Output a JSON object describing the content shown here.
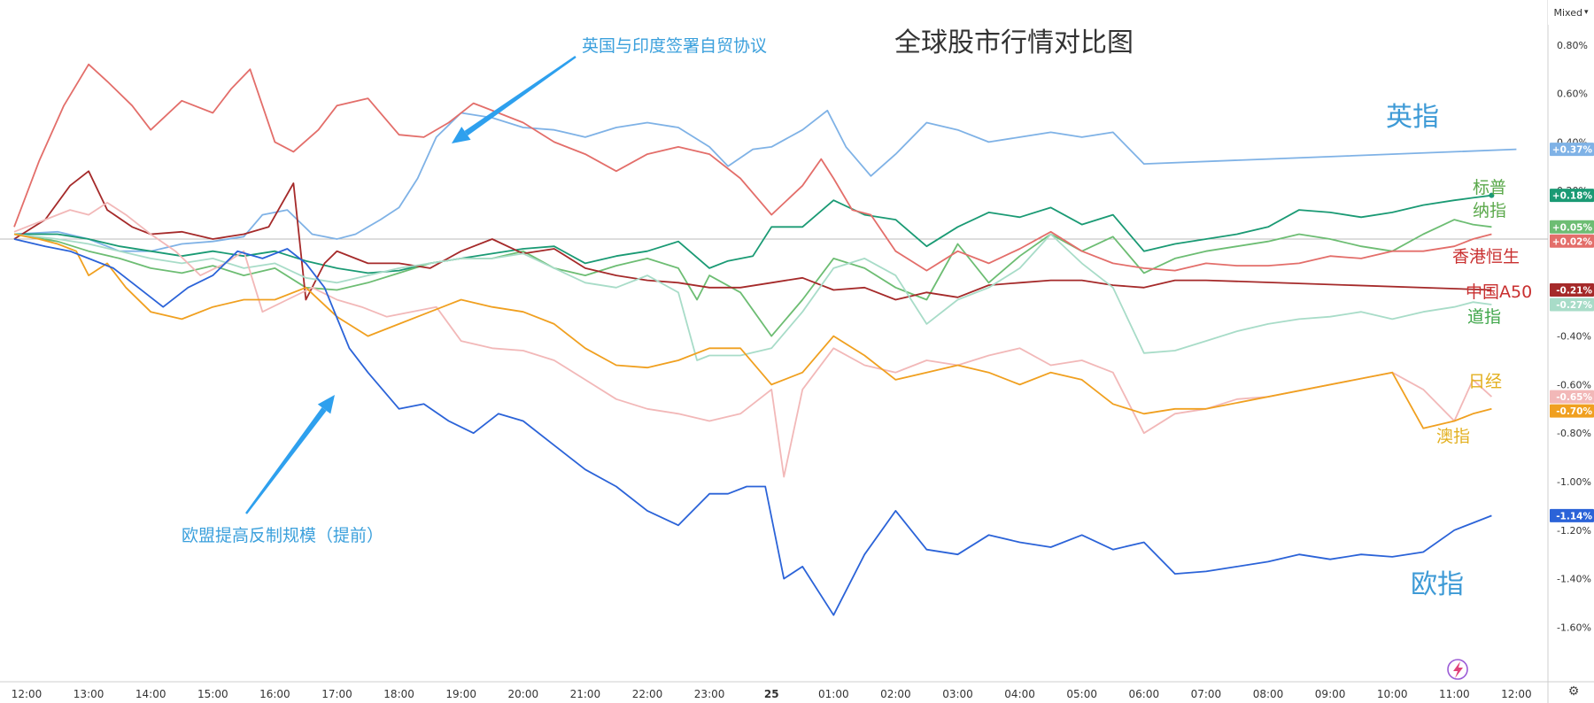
{
  "chart_data": {
    "type": "line",
    "title": "全球股市行情对比图",
    "y_ticks": [
      "0.80%",
      "0.60%",
      "0.40%",
      "0.20%",
      "-0.20%",
      "-0.40%",
      "-0.60%",
      "-0.80%",
      "-1.00%",
      "-1.20%",
      "-1.40%",
      "-1.60%"
    ],
    "ylim": [
      -1.72,
      0.9
    ],
    "x_ticks": [
      "12:00",
      "13:00",
      "14:00",
      "15:00",
      "16:00",
      "17:00",
      "18:00",
      "19:00",
      "20:00",
      "21:00",
      "22:00",
      "23:00",
      "25",
      "01:00",
      "02:00",
      "03:00",
      "04:00",
      "05:00",
      "06:00",
      "07:00",
      "08:00",
      "09:00",
      "10:00",
      "11:00",
      "12:00"
    ],
    "x_unit": "hours from 12:00 on 24th",
    "xlim": [
      -0.2,
      24.6
    ],
    "scale_mode": "Mixed",
    "grid": false,
    "zero_line": true,
    "series": [
      {
        "name": "英指",
        "color": "#7fb2e6",
        "badge": "+0.37%",
        "x": [
          -0.2,
          0.5,
          1.0,
          1.5,
          2.0,
          2.5,
          3.0,
          3.5,
          3.8,
          4.2,
          4.6,
          5.0,
          5.3,
          5.7,
          6.0,
          6.3,
          6.6,
          7.0,
          7.5,
          8.0,
          8.5,
          9.0,
          9.5,
          10.0,
          10.5,
          11.0,
          11.3,
          11.7,
          12.0,
          12.5,
          12.9,
          13.2,
          13.6,
          14.0,
          14.5,
          15.0,
          15.5,
          16.0,
          16.5,
          17.0,
          17.5,
          18.0,
          23.0,
          24.0
        ],
        "y": [
          0.02,
          0.03,
          0.0,
          -0.05,
          -0.05,
          -0.02,
          -0.01,
          0.01,
          0.1,
          0.12,
          0.02,
          0.0,
          0.02,
          0.08,
          0.13,
          0.25,
          0.42,
          0.52,
          0.5,
          0.46,
          0.45,
          0.42,
          0.46,
          0.48,
          0.46,
          0.38,
          0.3,
          0.37,
          0.38,
          0.45,
          0.53,
          0.38,
          0.26,
          0.35,
          0.48,
          0.45,
          0.4,
          0.42,
          0.44,
          0.42,
          0.44,
          0.31,
          0.36,
          0.37
        ]
      },
      {
        "name": "标普",
        "color": "#1a9a74",
        "badge": "+0.18%",
        "x": [
          -0.2,
          0.5,
          1.0,
          1.5,
          2.0,
          2.5,
          3.0,
          3.5,
          4.0,
          4.5,
          5.0,
          5.5,
          6.0,
          6.5,
          7.0,
          7.5,
          8.0,
          8.5,
          9.0,
          9.5,
          10.0,
          10.5,
          11.0,
          11.3,
          11.7,
          12.0,
          12.5,
          13.0,
          13.5,
          14.0,
          14.5,
          15.0,
          15.5,
          16.0,
          16.5,
          17.0,
          17.5,
          18.0,
          18.5,
          19.0,
          19.5,
          20.0,
          20.5,
          21.0,
          21.5,
          22.0,
          22.5,
          23.0,
          23.3,
          23.6
        ],
        "y": [
          0.02,
          0.02,
          0.0,
          -0.03,
          -0.05,
          -0.07,
          -0.05,
          -0.07,
          -0.05,
          -0.09,
          -0.12,
          -0.14,
          -0.13,
          -0.1,
          -0.08,
          -0.06,
          -0.04,
          -0.03,
          -0.1,
          -0.07,
          -0.05,
          -0.01,
          -0.12,
          -0.09,
          -0.07,
          0.05,
          0.05,
          0.16,
          0.1,
          0.08,
          -0.03,
          0.05,
          0.11,
          0.09,
          0.13,
          0.06,
          0.1,
          -0.05,
          -0.02,
          0.0,
          0.02,
          0.05,
          0.12,
          0.11,
          0.09,
          0.11,
          0.14,
          0.16,
          0.17,
          0.18
        ]
      },
      {
        "name": "纳指",
        "color": "#6dbd73",
        "badge": "+0.05%",
        "x": [
          -0.2,
          0.5,
          1.0,
          1.5,
          2.0,
          2.5,
          3.0,
          3.5,
          4.0,
          4.5,
          5.0,
          5.5,
          6.0,
          6.5,
          7.0,
          7.5,
          8.0,
          8.5,
          9.0,
          9.5,
          10.0,
          10.5,
          10.8,
          11.0,
          11.5,
          12.0,
          12.5,
          13.0,
          13.5,
          14.0,
          14.5,
          15.0,
          15.5,
          16.0,
          16.5,
          17.0,
          17.5,
          18.0,
          18.5,
          19.0,
          19.5,
          20.0,
          20.5,
          21.0,
          21.5,
          22.0,
          22.5,
          23.0,
          23.3,
          23.6
        ],
        "y": [
          0.02,
          -0.01,
          -0.05,
          -0.08,
          -0.12,
          -0.14,
          -0.11,
          -0.15,
          -0.12,
          -0.2,
          -0.21,
          -0.18,
          -0.14,
          -0.1,
          -0.08,
          -0.08,
          -0.05,
          -0.12,
          -0.15,
          -0.11,
          -0.08,
          -0.12,
          -0.25,
          -0.15,
          -0.22,
          -0.4,
          -0.25,
          -0.08,
          -0.12,
          -0.2,
          -0.25,
          -0.02,
          -0.18,
          -0.07,
          0.02,
          -0.05,
          0.01,
          -0.14,
          -0.08,
          -0.05,
          -0.03,
          -0.01,
          0.02,
          0.0,
          -0.03,
          -0.05,
          0.02,
          0.08,
          0.06,
          0.05
        ]
      },
      {
        "name": "香港恒生",
        "color": "#e36e6a",
        "badge": "+0.02%",
        "x": [
          -0.2,
          0.2,
          0.6,
          1.0,
          1.3,
          1.7,
          2.0,
          2.5,
          3.0,
          3.3,
          3.6,
          4.0,
          4.3,
          4.7,
          5.0,
          5.5,
          6.0,
          6.4,
          6.8,
          7.2,
          7.6,
          8.0,
          8.5,
          9.0,
          9.5,
          10.0,
          10.5,
          11.0,
          11.5,
          12.0,
          12.5,
          12.8,
          13.0,
          13.3,
          13.6,
          14.0,
          14.5,
          15.0,
          15.5,
          16.0,
          16.5,
          17.0,
          17.5,
          18.0,
          18.5,
          19.0,
          19.5,
          20.0,
          20.5,
          21.0,
          21.5,
          22.0,
          22.5,
          23.0,
          23.3,
          23.6
        ],
        "y": [
          0.05,
          0.32,
          0.55,
          0.72,
          0.65,
          0.55,
          0.45,
          0.57,
          0.52,
          0.62,
          0.7,
          0.4,
          0.36,
          0.45,
          0.55,
          0.58,
          0.43,
          0.42,
          0.48,
          0.56,
          0.52,
          0.48,
          0.4,
          0.35,
          0.28,
          0.35,
          0.38,
          0.35,
          0.25,
          0.1,
          0.22,
          0.33,
          0.25,
          0.12,
          0.1,
          -0.05,
          -0.13,
          -0.05,
          -0.1,
          -0.04,
          0.03,
          -0.05,
          -0.1,
          -0.12,
          -0.13,
          -0.1,
          -0.11,
          -0.11,
          -0.1,
          -0.07,
          -0.08,
          -0.05,
          -0.05,
          -0.03,
          0.0,
          0.02
        ]
      },
      {
        "name": "中国A50",
        "color": "#a52a2a",
        "badge": "-0.21%",
        "x": [
          -0.2,
          0.3,
          0.7,
          1.0,
          1.3,
          1.7,
          2.0,
          2.5,
          3.0,
          3.5,
          3.9,
          4.3,
          4.5,
          4.8,
          5.0,
          5.5,
          6.0,
          6.5,
          7.0,
          7.5,
          8.0,
          8.5,
          9.0,
          9.5,
          10.0,
          10.5,
          11.0,
          11.5,
          12.0,
          12.5,
          13.0,
          13.5,
          14.0,
          14.5,
          15.0,
          15.5,
          16.0,
          16.5,
          17.0,
          17.5,
          18.0,
          18.5,
          19.0,
          23.6
        ],
        "y": [
          0.0,
          0.08,
          0.22,
          0.28,
          0.12,
          0.05,
          0.02,
          0.03,
          0.0,
          0.02,
          0.05,
          0.23,
          -0.25,
          -0.1,
          -0.05,
          -0.1,
          -0.1,
          -0.12,
          -0.05,
          0.0,
          -0.06,
          -0.04,
          -0.12,
          -0.15,
          -0.17,
          -0.18,
          -0.2,
          -0.2,
          -0.18,
          -0.16,
          -0.21,
          -0.2,
          -0.25,
          -0.22,
          -0.24,
          -0.19,
          -0.18,
          -0.17,
          -0.17,
          -0.19,
          -0.2,
          -0.17,
          -0.17,
          -0.21
        ]
      },
      {
        "name": "道指",
        "color": "#a8dcc8",
        "badge": "-0.27%",
        "x": [
          -0.2,
          0.5,
          1.0,
          1.5,
          2.0,
          2.5,
          3.0,
          3.5,
          4.0,
          4.5,
          5.0,
          5.5,
          6.0,
          6.5,
          7.0,
          7.5,
          8.0,
          8.5,
          9.0,
          9.5,
          10.0,
          10.5,
          10.8,
          11.0,
          11.5,
          12.0,
          12.5,
          13.0,
          13.5,
          14.0,
          14.5,
          15.0,
          15.5,
          16.0,
          16.5,
          17.0,
          17.5,
          18.0,
          18.5,
          19.0,
          19.5,
          20.0,
          20.5,
          21.0,
          21.5,
          22.0,
          22.5,
          23.0,
          23.3,
          23.6
        ],
        "y": [
          0.02,
          0.0,
          -0.02,
          -0.05,
          -0.08,
          -0.1,
          -0.08,
          -0.12,
          -0.1,
          -0.16,
          -0.18,
          -0.15,
          -0.12,
          -0.1,
          -0.08,
          -0.08,
          -0.06,
          -0.12,
          -0.18,
          -0.2,
          -0.15,
          -0.22,
          -0.5,
          -0.48,
          -0.48,
          -0.45,
          -0.3,
          -0.12,
          -0.08,
          -0.15,
          -0.35,
          -0.25,
          -0.2,
          -0.12,
          0.02,
          -0.1,
          -0.2,
          -0.47,
          -0.46,
          -0.42,
          -0.38,
          -0.35,
          -0.33,
          -0.32,
          -0.3,
          -0.33,
          -0.3,
          -0.28,
          -0.26,
          -0.27
        ]
      },
      {
        "name": "日经",
        "color": "#f2b8b8",
        "badge": "-0.65%",
        "x": [
          -0.2,
          0.3,
          0.7,
          1.0,
          1.3,
          1.6,
          2.0,
          2.4,
          2.8,
          3.2,
          3.5,
          3.8,
          4.2,
          4.6,
          5.0,
          5.4,
          5.8,
          6.2,
          6.6,
          7.0,
          7.5,
          8.0,
          8.5,
          9.0,
          9.5,
          10.0,
          10.5,
          11.0,
          11.5,
          12.0,
          12.2,
          12.5,
          13.0,
          13.5,
          14.0,
          14.5,
          15.0,
          15.5,
          16.0,
          16.5,
          17.0,
          17.5,
          18.0,
          18.5,
          19.0,
          19.5,
          20.0,
          21.0,
          22.0,
          22.5,
          23.0,
          23.3,
          23.6
        ],
        "y": [
          0.03,
          0.08,
          0.12,
          0.1,
          0.15,
          0.1,
          0.02,
          -0.05,
          -0.15,
          -0.1,
          -0.05,
          -0.3,
          -0.25,
          -0.2,
          -0.25,
          -0.28,
          -0.32,
          -0.3,
          -0.28,
          -0.42,
          -0.45,
          -0.46,
          -0.5,
          -0.58,
          -0.66,
          -0.7,
          -0.72,
          -0.75,
          -0.72,
          -0.62,
          -0.98,
          -0.62,
          -0.45,
          -0.52,
          -0.55,
          -0.5,
          -0.52,
          -0.48,
          -0.45,
          -0.52,
          -0.5,
          -0.55,
          -0.8,
          -0.72,
          -0.7,
          -0.66,
          -0.65,
          -0.6,
          -0.55,
          -0.62,
          -0.75,
          -0.58,
          -0.65
        ]
      },
      {
        "name": "澳指",
        "color": "#f0a020",
        "badge": "-0.70%",
        "x": [
          -0.2,
          0.2,
          0.5,
          0.8,
          1.0,
          1.3,
          1.6,
          2.0,
          2.5,
          3.0,
          3.5,
          4.0,
          4.5,
          5.0,
          5.5,
          6.0,
          6.5,
          7.0,
          7.5,
          8.0,
          8.5,
          9.0,
          9.5,
          10.0,
          10.5,
          11.0,
          11.5,
          12.0,
          12.5,
          13.0,
          13.5,
          14.0,
          14.5,
          15.0,
          15.5,
          16.0,
          16.5,
          17.0,
          17.5,
          18.0,
          18.5,
          19.0,
          22.0,
          22.5,
          23.0,
          23.3,
          23.6
        ],
        "y": [
          0.02,
          0.0,
          -0.02,
          -0.05,
          -0.15,
          -0.1,
          -0.2,
          -0.3,
          -0.33,
          -0.28,
          -0.25,
          -0.25,
          -0.2,
          -0.32,
          -0.4,
          -0.35,
          -0.3,
          -0.25,
          -0.28,
          -0.3,
          -0.35,
          -0.45,
          -0.52,
          -0.53,
          -0.5,
          -0.45,
          -0.45,
          -0.6,
          -0.55,
          -0.4,
          -0.48,
          -0.58,
          -0.55,
          -0.52,
          -0.55,
          -0.6,
          -0.55,
          -0.58,
          -0.68,
          -0.72,
          -0.7,
          -0.7,
          -0.55,
          -0.78,
          -0.75,
          -0.72,
          -0.7
        ]
      },
      {
        "name": "欧指",
        "color": "#2b63d8",
        "badge": "-1.14%",
        "x": [
          -0.2,
          0.3,
          0.7,
          1.0,
          1.4,
          1.8,
          2.2,
          2.6,
          3.0,
          3.4,
          3.8,
          4.2,
          4.5,
          4.8,
          5.2,
          5.5,
          6.0,
          6.4,
          6.8,
          7.2,
          7.6,
          8.0,
          8.5,
          9.0,
          9.5,
          10.0,
          10.5,
          11.0,
          11.3,
          11.6,
          11.9,
          12.2,
          12.5,
          13.0,
          13.5,
          14.0,
          14.5,
          15.0,
          15.5,
          16.0,
          16.5,
          17.0,
          17.5,
          18.0,
          18.5,
          19.0,
          19.5,
          20.0,
          20.5,
          21.0,
          21.5,
          22.0,
          22.5,
          23.0,
          23.3,
          23.6
        ],
        "y": [
          0.0,
          -0.03,
          -0.05,
          -0.08,
          -0.12,
          -0.2,
          -0.28,
          -0.2,
          -0.15,
          -0.05,
          -0.08,
          -0.04,
          -0.1,
          -0.2,
          -0.45,
          -0.55,
          -0.7,
          -0.68,
          -0.75,
          -0.8,
          -0.72,
          -0.75,
          -0.85,
          -0.95,
          -1.02,
          -1.12,
          -1.18,
          -1.05,
          -1.05,
          -1.02,
          -1.02,
          -1.4,
          -1.35,
          -1.55,
          -1.3,
          -1.12,
          -1.28,
          -1.3,
          -1.22,
          -1.25,
          -1.27,
          -1.22,
          -1.28,
          -1.25,
          -1.38,
          -1.37,
          -1.35,
          -1.33,
          -1.3,
          -1.32,
          -1.3,
          -1.31,
          -1.29,
          -1.2,
          -1.17,
          -1.14
        ]
      }
    ],
    "series_labels": [
      {
        "text": "英指",
        "color": "#3d9ad6"
      },
      {
        "text": "标普",
        "color": "#5aa84a"
      },
      {
        "text": "纳指",
        "color": "#5aa84a"
      },
      {
        "text": "香港恒生",
        "color": "#c93030"
      },
      {
        "text": "中国A50",
        "color": "#c93030"
      },
      {
        "text": "道指",
        "color": "#3fa64a"
      },
      {
        "text": "日经",
        "color": "#e3b020"
      },
      {
        "text": "澳指",
        "color": "#e3b020"
      },
      {
        "text": "欧指",
        "color": "#3d9ad6"
      }
    ],
    "annotations": [
      {
        "text": "英国与印度签署自贸协议",
        "color": "#3ba0dc"
      },
      {
        "text": "欧盟提高反制规模（提前）",
        "color": "#3ba0dc"
      }
    ]
  },
  "ui": {
    "scale_mode_label": "Mixed",
    "settings_icon": "gear-icon",
    "watermark_icon": "lightning-logo-icon",
    "colors": {
      "axis": "#cccccc",
      "text": "#333333",
      "zero_line": "#bbbbbb",
      "arrow": "#2ea0ee"
    }
  }
}
